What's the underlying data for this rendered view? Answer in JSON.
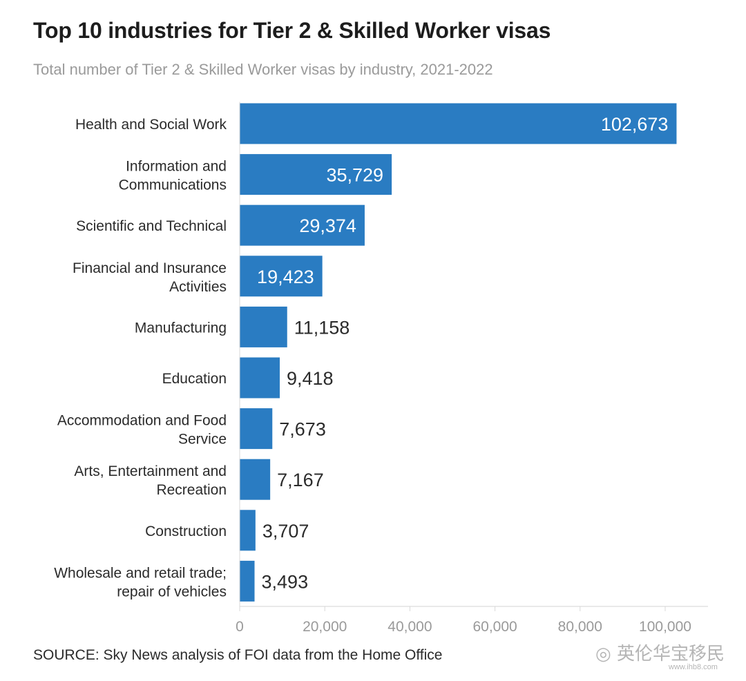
{
  "title": "Top 10 industries for Tier 2 & Skilled Worker visas",
  "subtitle": "Total number of Tier 2 & Skilled Worker visas by industry, 2021-2022",
  "source": "SOURCE: Sky News analysis of FOI data from the Home Office",
  "watermark": {
    "icon": "wechat-icon",
    "text": "英伦华宝移民",
    "url": "www.ihb8.com"
  },
  "colors": {
    "bar": "#2a7cc2",
    "label_inside": "#ffffff",
    "label_outside": "#2b2b2b",
    "axis_text": "#9a9a9a"
  },
  "chart_data": {
    "type": "bar",
    "orientation": "horizontal",
    "categories": [
      [
        "Health and Social Work"
      ],
      [
        "Information and",
        "Communications"
      ],
      [
        "Scientific and Technical"
      ],
      [
        "Financial and Insurance",
        "Activities"
      ],
      [
        "Manufacturing"
      ],
      [
        "Education"
      ],
      [
        "Accommodation and Food",
        "Service"
      ],
      [
        "Arts, Entertainment and",
        "Recreation"
      ],
      [
        "Construction"
      ],
      [
        "Wholesale and retail trade;",
        "repair of vehicles"
      ]
    ],
    "values": [
      102673,
      35729,
      29374,
      19423,
      11158,
      9418,
      7673,
      7167,
      3707,
      3493
    ],
    "value_labels": [
      "102,673",
      "35,729",
      "29,374",
      "19,423",
      "11,158",
      "9,418",
      "7,673",
      "7,167",
      "3,707",
      "3,493"
    ],
    "label_inside": [
      true,
      true,
      true,
      true,
      false,
      false,
      false,
      false,
      false,
      false
    ],
    "xticks": [
      0,
      20000,
      40000,
      60000,
      80000,
      100000
    ],
    "xtick_labels": [
      "0",
      "20,000",
      "40,000",
      "60,000",
      "80,000",
      "100,000"
    ],
    "xlim": [
      0,
      110000
    ],
    "grid": false,
    "legend": "none"
  }
}
